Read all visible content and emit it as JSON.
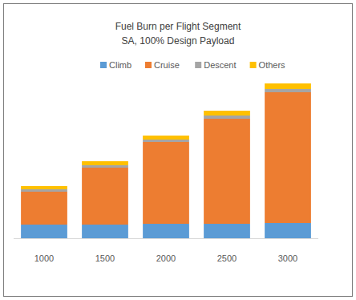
{
  "chart_data": {
    "type": "bar",
    "stacked": true,
    "title": "Fuel Burn per Flight Segment",
    "subtitle": "SA, 100% Design Payload",
    "categories": [
      "1000",
      "1500",
      "2000",
      "2500",
      "3000"
    ],
    "series": [
      {
        "name": "Climb",
        "color": "#5b9bd5",
        "values": [
          17,
          17,
          18,
          18,
          19
        ]
      },
      {
        "name": "Cruise",
        "color": "#ed7d31",
        "values": [
          41,
          71,
          102,
          131,
          163
        ]
      },
      {
        "name": "Descent",
        "color": "#a5a5a5",
        "values": [
          3,
          3,
          3,
          4,
          4
        ]
      },
      {
        "name": "Others",
        "color": "#ffc000",
        "values": [
          4,
          5,
          5,
          6,
          7
        ]
      }
    ],
    "ylim": [
      0,
      200
    ],
    "grid": false,
    "legend": "top",
    "tick_labels": "x"
  }
}
